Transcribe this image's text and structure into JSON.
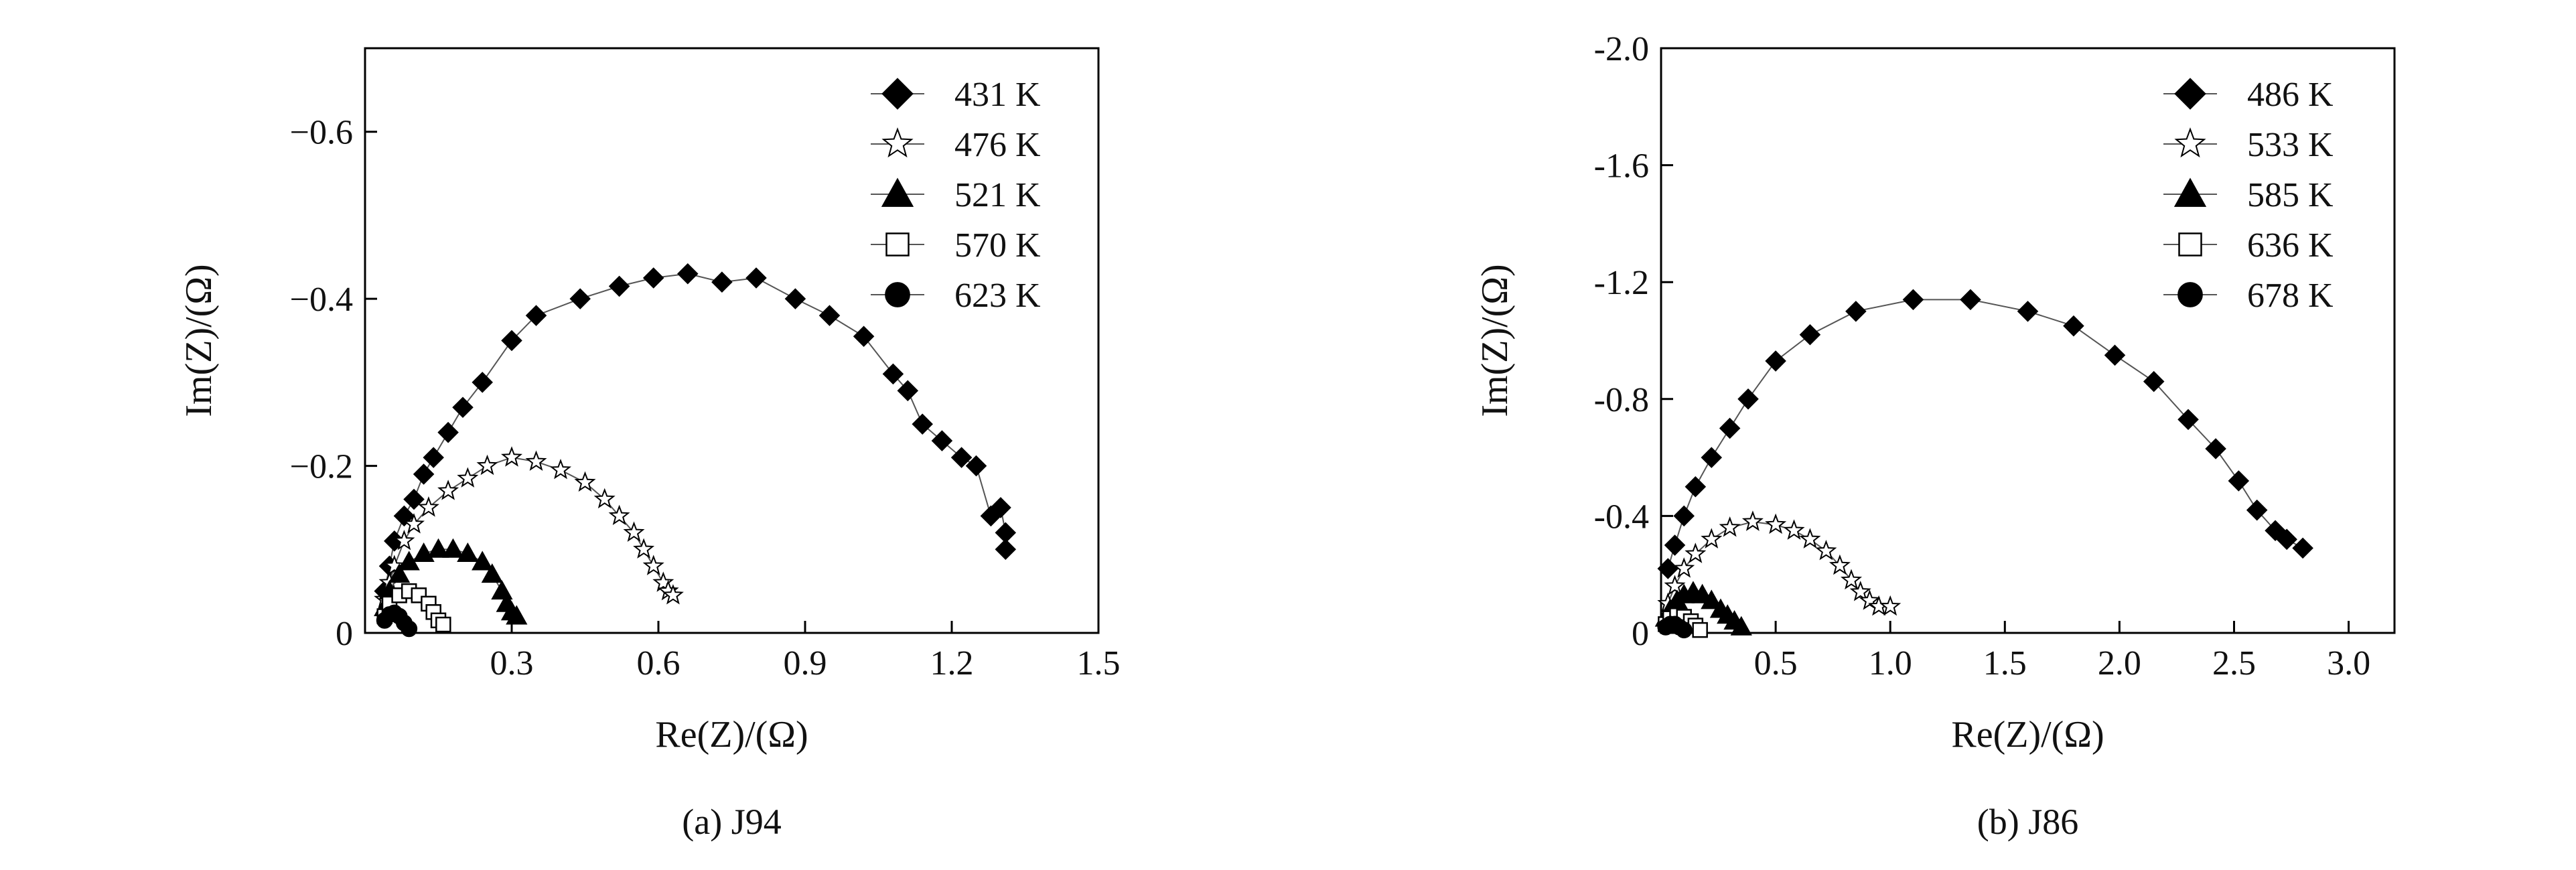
{
  "chart_data": [
    {
      "type": "scatter",
      "caption": "(a) J94",
      "xlabel": "Re(Z)/(Ω)",
      "ylabel": "Im(Z)/(Ω)",
      "xlim": [
        0.0,
        1.5
      ],
      "ylim": [
        0.0,
        -0.7
      ],
      "xticks": [
        {
          "v": 0.3,
          "label": "0.3"
        },
        {
          "v": 0.6,
          "label": "0.6"
        },
        {
          "v": 0.9,
          "label": "0.9"
        },
        {
          "v": 1.2,
          "label": "1.2"
        },
        {
          "v": 1.5,
          "label": "1.5"
        }
      ],
      "yticks": [
        {
          "v": 0.0,
          "label": "0"
        },
        {
          "v": -0.2,
          "label": "−0.2"
        },
        {
          "v": -0.4,
          "label": "−0.4"
        },
        {
          "v": -0.6,
          "label": "−0.6"
        }
      ],
      "grid": false,
      "legend_position": "top-right",
      "series": [
        {
          "name": "431 K",
          "marker": "diamond",
          "points": [
            [
              0.04,
              -0.05
            ],
            [
              0.05,
              -0.08
            ],
            [
              0.06,
              -0.11
            ],
            [
              0.08,
              -0.14
            ],
            [
              0.1,
              -0.16
            ],
            [
              0.12,
              -0.19
            ],
            [
              0.14,
              -0.21
            ],
            [
              0.17,
              -0.24
            ],
            [
              0.2,
              -0.27
            ],
            [
              0.24,
              -0.3
            ],
            [
              0.3,
              -0.35
            ],
            [
              0.35,
              -0.38
            ],
            [
              0.44,
              -0.4
            ],
            [
              0.52,
              -0.415
            ],
            [
              0.59,
              -0.425
            ],
            [
              0.66,
              -0.43
            ],
            [
              0.73,
              -0.42
            ],
            [
              0.8,
              -0.425
            ],
            [
              0.88,
              -0.4
            ],
            [
              0.95,
              -0.38
            ],
            [
              1.02,
              -0.355
            ],
            [
              1.08,
              -0.31
            ],
            [
              1.11,
              -0.29
            ],
            [
              1.14,
              -0.25
            ],
            [
              1.18,
              -0.23
            ],
            [
              1.22,
              -0.21
            ],
            [
              1.25,
              -0.2
            ],
            [
              1.28,
              -0.14
            ],
            [
              1.3,
              -0.15
            ],
            [
              1.31,
              -0.12
            ],
            [
              1.31,
              -0.1
            ]
          ]
        },
        {
          "name": "476 K",
          "marker": "star",
          "points": [
            [
              0.04,
              -0.04
            ],
            [
              0.05,
              -0.06
            ],
            [
              0.06,
              -0.08
            ],
            [
              0.08,
              -0.11
            ],
            [
              0.1,
              -0.13
            ],
            [
              0.13,
              -0.15
            ],
            [
              0.17,
              -0.17
            ],
            [
              0.21,
              -0.185
            ],
            [
              0.25,
              -0.2
            ],
            [
              0.3,
              -0.21
            ],
            [
              0.35,
              -0.205
            ],
            [
              0.4,
              -0.195
            ],
            [
              0.45,
              -0.18
            ],
            [
              0.49,
              -0.16
            ],
            [
              0.52,
              -0.14
            ],
            [
              0.55,
              -0.12
            ],
            [
              0.57,
              -0.1
            ],
            [
              0.59,
              -0.08
            ],
            [
              0.61,
              -0.06
            ],
            [
              0.62,
              -0.05
            ],
            [
              0.63,
              -0.045
            ]
          ]
        },
        {
          "name": "521 K",
          "marker": "triangle",
          "points": [
            [
              0.04,
              -0.03
            ],
            [
              0.05,
              -0.05
            ],
            [
              0.07,
              -0.07
            ],
            [
              0.09,
              -0.085
            ],
            [
              0.12,
              -0.095
            ],
            [
              0.15,
              -0.1
            ],
            [
              0.18,
              -0.1
            ],
            [
              0.21,
              -0.095
            ],
            [
              0.24,
              -0.085
            ],
            [
              0.26,
              -0.07
            ],
            [
              0.28,
              -0.05
            ],
            [
              0.29,
              -0.035
            ],
            [
              0.3,
              -0.025
            ],
            [
              0.31,
              -0.02
            ]
          ]
        },
        {
          "name": "570 K",
          "marker": "square",
          "points": [
            [
              0.04,
              -0.02
            ],
            [
              0.05,
              -0.035
            ],
            [
              0.07,
              -0.045
            ],
            [
              0.09,
              -0.05
            ],
            [
              0.11,
              -0.045
            ],
            [
              0.13,
              -0.035
            ],
            [
              0.14,
              -0.025
            ],
            [
              0.15,
              -0.015
            ],
            [
              0.16,
              -0.01
            ]
          ]
        },
        {
          "name": "623 K",
          "marker": "circle",
          "points": [
            [
              0.04,
              -0.015
            ],
            [
              0.05,
              -0.022
            ],
            [
              0.06,
              -0.024
            ],
            [
              0.07,
              -0.02
            ],
            [
              0.08,
              -0.012
            ],
            [
              0.09,
              -0.005
            ]
          ]
        }
      ]
    },
    {
      "type": "scatter",
      "caption": "(b) J86",
      "xlabel": "Re(Z)/(Ω)",
      "ylabel": "Im(Z)/(Ω)",
      "xlim": [
        0.0,
        3.2
      ],
      "ylim": [
        0.0,
        -2.0
      ],
      "xticks": [
        {
          "v": 0.5,
          "label": "0.5"
        },
        {
          "v": 1.0,
          "label": "1.0"
        },
        {
          "v": 1.5,
          "label": "1.5"
        },
        {
          "v": 2.0,
          "label": "2.0"
        },
        {
          "v": 2.5,
          "label": "2.5"
        },
        {
          "v": 3.0,
          "label": "3.0"
        }
      ],
      "yticks": [
        {
          "v": 0.0,
          "label": "0"
        },
        {
          "v": -0.4,
          "label": "-0.4"
        },
        {
          "v": -0.8,
          "label": "-0.8"
        },
        {
          "v": -1.2,
          "label": "-1.2"
        },
        {
          "v": -1.6,
          "label": "-1.6"
        },
        {
          "v": -2.0,
          "label": "-2.0"
        }
      ],
      "grid": false,
      "legend_position": "top-right",
      "series": [
        {
          "name": "486 K",
          "marker": "diamond",
          "points": [
            [
              0.03,
              -0.22
            ],
            [
              0.06,
              -0.3
            ],
            [
              0.1,
              -0.4
            ],
            [
              0.15,
              -0.5
            ],
            [
              0.22,
              -0.6
            ],
            [
              0.3,
              -0.7
            ],
            [
              0.38,
              -0.8
            ],
            [
              0.5,
              -0.93
            ],
            [
              0.65,
              -1.02
            ],
            [
              0.85,
              -1.1
            ],
            [
              1.1,
              -1.14
            ],
            [
              1.35,
              -1.14
            ],
            [
              1.6,
              -1.1
            ],
            [
              1.8,
              -1.05
            ],
            [
              1.98,
              -0.95
            ],
            [
              2.15,
              -0.86
            ],
            [
              2.3,
              -0.73
            ],
            [
              2.42,
              -0.63
            ],
            [
              2.52,
              -0.52
            ],
            [
              2.6,
              -0.42
            ],
            [
              2.68,
              -0.35
            ],
            [
              2.73,
              -0.32
            ],
            [
              2.8,
              -0.29
            ]
          ]
        },
        {
          "name": "533 K",
          "marker": "star",
          "points": [
            [
              0.03,
              -0.1
            ],
            [
              0.06,
              -0.16
            ],
            [
              0.1,
              -0.22
            ],
            [
              0.15,
              -0.27
            ],
            [
              0.22,
              -0.32
            ],
            [
              0.3,
              -0.36
            ],
            [
              0.4,
              -0.38
            ],
            [
              0.5,
              -0.37
            ],
            [
              0.58,
              -0.35
            ],
            [
              0.65,
              -0.32
            ],
            [
              0.72,
              -0.28
            ],
            [
              0.78,
              -0.23
            ],
            [
              0.83,
              -0.18
            ],
            [
              0.87,
              -0.14
            ],
            [
              0.91,
              -0.11
            ],
            [
              0.95,
              -0.09
            ],
            [
              1.0,
              -0.09
            ]
          ]
        },
        {
          "name": "585 K",
          "marker": "triangle",
          "points": [
            [
              0.02,
              -0.05
            ],
            [
              0.04,
              -0.08
            ],
            [
              0.07,
              -0.11
            ],
            [
              0.1,
              -0.13
            ],
            [
              0.14,
              -0.14
            ],
            [
              0.18,
              -0.13
            ],
            [
              0.22,
              -0.11
            ],
            [
              0.26,
              -0.08
            ],
            [
              0.29,
              -0.06
            ],
            [
              0.32,
              -0.04
            ],
            [
              0.35,
              -0.02
            ]
          ]
        },
        {
          "name": "636 K",
          "marker": "square",
          "points": [
            [
              0.02,
              -0.03
            ],
            [
              0.04,
              -0.05
            ],
            [
              0.07,
              -0.06
            ],
            [
              0.1,
              -0.055
            ],
            [
              0.13,
              -0.04
            ],
            [
              0.15,
              -0.025
            ],
            [
              0.17,
              -0.01
            ]
          ]
        },
        {
          "name": "678 K",
          "marker": "circle",
          "points": [
            [
              0.02,
              -0.02
            ],
            [
              0.04,
              -0.03
            ],
            [
              0.06,
              -0.03
            ],
            [
              0.08,
              -0.02
            ],
            [
              0.1,
              -0.01
            ]
          ]
        }
      ]
    }
  ]
}
